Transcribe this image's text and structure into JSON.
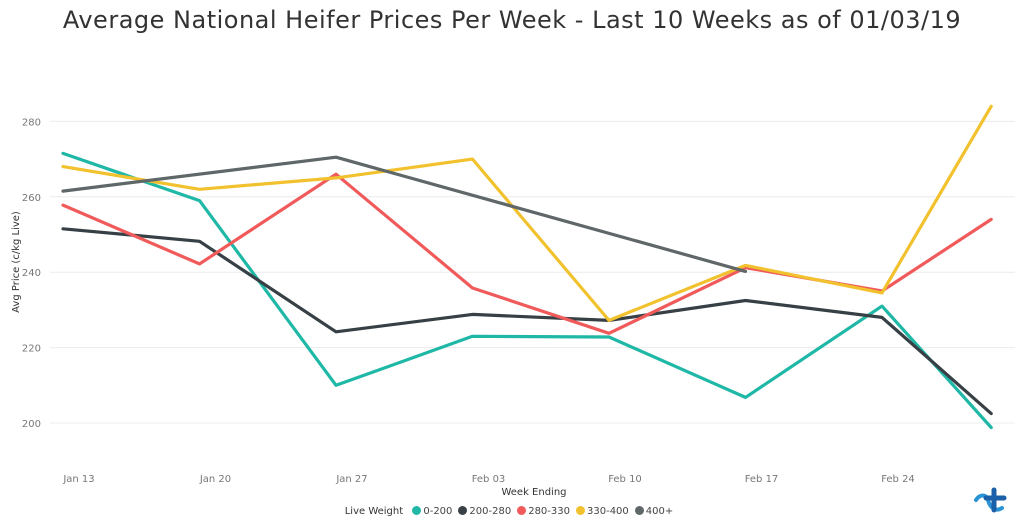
{
  "chart_data": {
    "type": "line",
    "title": "Average National Heifer Prices Per Week - Last 10 Weeks as of 01/03/19",
    "xlabel": "Week Ending",
    "ylabel": "Avg Price (c/kg Live)",
    "x_ticks": [
      "Jan 13",
      "Jan 20",
      "Jan 27",
      "Feb 03",
      "Feb 10",
      "Feb 17",
      "Feb 24"
    ],
    "y_ticks": [
      200,
      220,
      240,
      260,
      280
    ],
    "ylim": [
      187,
      300
    ],
    "grid": "horizontal",
    "legend": {
      "title": "Live Weight",
      "placement": "bottom"
    },
    "series": [
      {
        "name": "0-200",
        "color": "#1fb8a6",
        "points": [
          [
            0,
            271.5
          ],
          [
            1,
            259
          ],
          [
            2,
            210
          ],
          [
            3,
            223
          ],
          [
            4,
            222.8
          ],
          [
            5,
            206.8
          ],
          [
            6,
            231
          ],
          [
            6.8,
            198.8
          ]
        ]
      },
      {
        "name": "200-280",
        "color": "#374045",
        "points": [
          [
            0,
            251.5
          ],
          [
            1,
            248.2
          ],
          [
            2,
            224.2
          ],
          [
            3,
            228.8
          ],
          [
            4,
            227.2
          ],
          [
            5,
            232.5
          ],
          [
            6,
            228
          ],
          [
            6.8,
            202.5
          ]
        ]
      },
      {
        "name": "280-330",
        "color": "#f05a5a",
        "points": [
          [
            0,
            257.8
          ],
          [
            1,
            242.2
          ],
          [
            2,
            266
          ],
          [
            3,
            235.8
          ],
          [
            4,
            223.8
          ],
          [
            5,
            241.2
          ],
          [
            6,
            235
          ],
          [
            6.8,
            254
          ]
        ]
      },
      {
        "name": "330-400",
        "color": "#f2c12e",
        "points": [
          [
            0,
            268
          ],
          [
            1,
            262
          ],
          [
            2,
            265
          ],
          [
            3,
            270
          ],
          [
            4,
            227.2
          ],
          [
            5,
            241.8
          ],
          [
            6,
            234.5
          ],
          [
            6.8,
            284
          ]
        ]
      },
      {
        "name": "400+",
        "color": "#5f6769",
        "points": [
          [
            0,
            261.5
          ],
          [
            2,
            270.5
          ],
          [
            5,
            240.2
          ]
        ]
      }
    ]
  }
}
